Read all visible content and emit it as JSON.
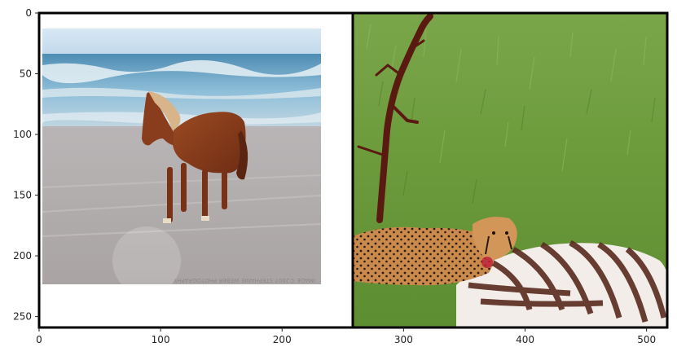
{
  "axes": {
    "xticks": [
      "0",
      "100",
      "200",
      "300",
      "400",
      "500"
    ],
    "yticks": [
      "0",
      "50",
      "100",
      "150",
      "200",
      "250"
    ],
    "xrange": [
      0,
      517
    ],
    "yrange": [
      0,
      259
    ],
    "grid": false
  },
  "panels": [
    {
      "name": "horse-on-beach-photo",
      "watermark": "IMAGE ©2007 STEPHANIE WEBER PHOTOGRAPHY"
    },
    {
      "name": "cheetah-with-zebra-photo"
    }
  ],
  "colors": {
    "sky": "#cfe4f3",
    "sea": "#7fb0cc",
    "sand": "#b7b3b2",
    "horse": "#8a3d1c",
    "grass": "#6f9b3c",
    "cheetah": "#c98a4c",
    "frame": "#000000"
  }
}
